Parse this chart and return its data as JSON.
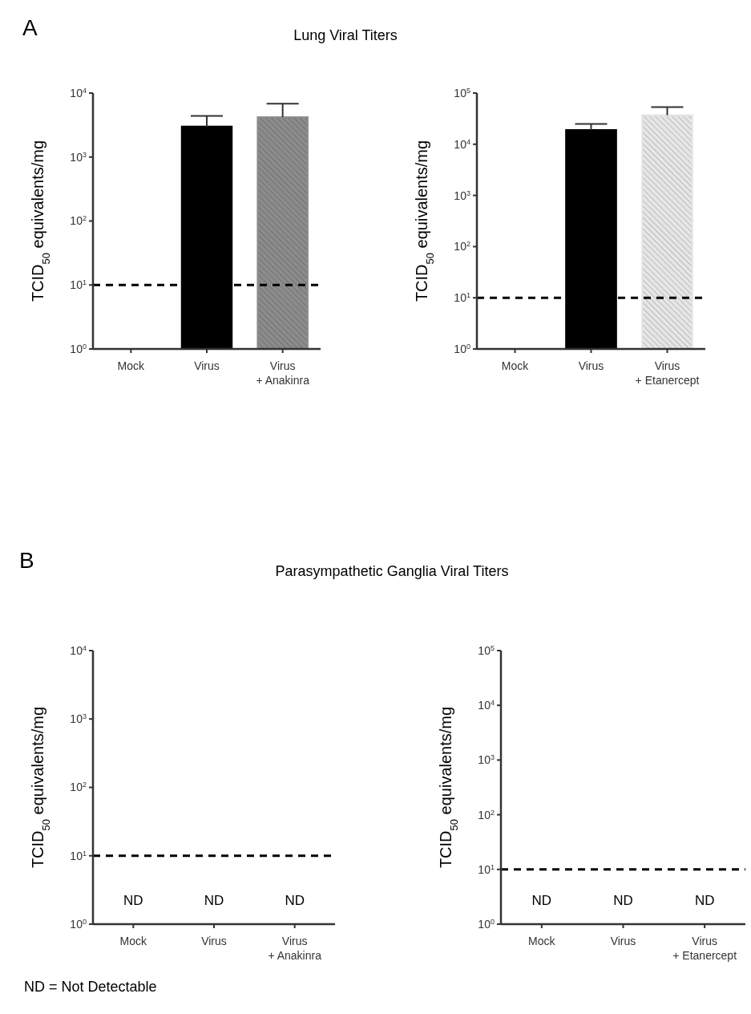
{
  "chart_data": [
    {
      "type": "bar",
      "title": "Lung Viral Titers",
      "annotations": [
        "A"
      ],
      "ylabel": "TCID$_{50}$ equivalents/mg",
      "categories": [
        "Mock",
        "Virus",
        "Virus\n+ Anakinra"
      ],
      "values": [
        null,
        3000,
        4200
      ],
      "errors": [
        null,
        [
          3000,
          4400
        ],
        [
          4200,
          6800
        ]
      ],
      "colors": [
        null,
        "#000000",
        "#8c8c8c"
      ],
      "log": true,
      "ylim": [
        1,
        10000
      ],
      "yticks": [
        {
          "value": 1,
          "label": "10$^{0}$"
        },
        {
          "value": 10,
          "label": "10$^{1}$"
        },
        {
          "value": 100,
          "label": "10$^{2}$"
        },
        {
          "value": 1000,
          "label": "10$^{3}$"
        },
        {
          "value": 10000,
          "label": "10$^{4}$"
        }
      ],
      "ref_lines": [
        {
          "axis": "y",
          "value": 10,
          "color": "#000000",
          "line_style": "dashed"
        }
      ],
      "grid": false
    },
    {
      "type": "bar",
      "ylabel": "TCID$_{50}$ equivalents/mg",
      "categories": [
        "Mock",
        "Virus",
        "Virus\n+ Etanercept"
      ],
      "values": [
        null,
        19000,
        37000
      ],
      "errors": [
        null,
        [
          19000,
          25000
        ],
        [
          37000,
          53000
        ]
      ],
      "colors": [
        null,
        "#000000",
        "#e6e6e6"
      ],
      "log": true,
      "ylim": [
        1,
        100000
      ],
      "yticks": [
        {
          "value": 1,
          "label": "10$^{0}$"
        },
        {
          "value": 10,
          "label": "10$^{1}$"
        },
        {
          "value": 100,
          "label": "10$^{2}$"
        },
        {
          "value": 1000,
          "label": "10$^{3}$"
        },
        {
          "value": 10000,
          "label": "10$^{4}$"
        },
        {
          "value": 100000,
          "label": "10$^{5}$"
        }
      ],
      "ref_lines": [
        {
          "axis": "y",
          "value": 10,
          "color": "#000000",
          "line_style": "dashed"
        }
      ],
      "grid": false
    },
    {
      "type": "bar",
      "title": "Parasympathetic Ganglia Viral Titers",
      "annotations": [
        "B",
        "ND = Not Detectable"
      ],
      "ylabel": "TCID$_{50}$ equivalents/mg",
      "categories": [
        "Mock",
        "Virus",
        "Virus\n+ Anakinra"
      ],
      "values": [
        null,
        null,
        null
      ],
      "value_labels": [
        "ND",
        "ND",
        "ND"
      ],
      "log": true,
      "ylim": [
        1,
        10000
      ],
      "yticks": [
        {
          "value": 1,
          "label": "10$^{0}$"
        },
        {
          "value": 10,
          "label": "10$^{1}$"
        },
        {
          "value": 100,
          "label": "10$^{2}$"
        },
        {
          "value": 1000,
          "label": "10$^{3}$"
        },
        {
          "value": 10000,
          "label": "10$^{4}$"
        }
      ],
      "ref_lines": [
        {
          "axis": "y",
          "value": 10,
          "color": "#000000",
          "line_style": "dashed"
        }
      ],
      "grid": false
    },
    {
      "type": "bar",
      "ylabel": "TCID$_{50}$ equivalents/mg",
      "categories": [
        "Mock",
        "Virus",
        "Virus\n+ Etanercept"
      ],
      "values": [
        null,
        null,
        null
      ],
      "value_labels": [
        "ND",
        "ND",
        "ND"
      ],
      "log": true,
      "ylim": [
        1,
        100000
      ],
      "yticks": [
        {
          "value": 1,
          "label": "10$^{0}$"
        },
        {
          "value": 10,
          "label": "10$^{1}$"
        },
        {
          "value": 100,
          "label": "10$^{2}$"
        },
        {
          "value": 1000,
          "label": "10$^{3}$"
        },
        {
          "value": 10000,
          "label": "10$^{4}$"
        },
        {
          "value": 100000,
          "label": "10$^{5}$"
        }
      ],
      "ref_lines": [
        {
          "axis": "y",
          "value": 10,
          "color": "#000000",
          "line_style": "dashed"
        }
      ],
      "grid": false
    }
  ]
}
